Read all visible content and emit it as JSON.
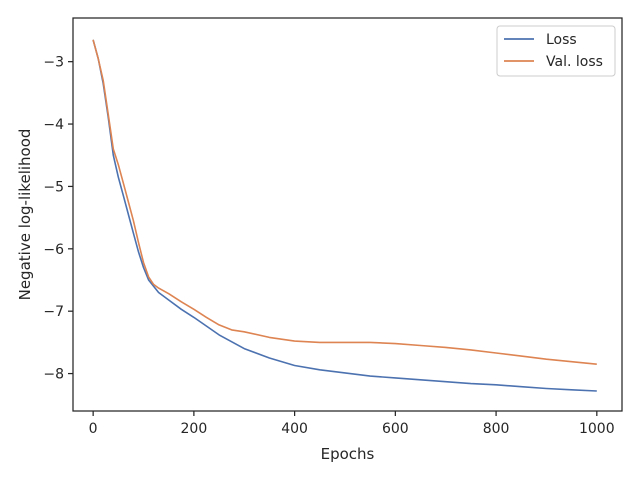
{
  "chart_data": {
    "type": "line",
    "xlabel": "Epochs",
    "ylabel": "Negative log-likelihood",
    "xlim": [
      -40,
      1050
    ],
    "ylim": [
      -8.6,
      -2.3
    ],
    "xticks": [
      0,
      200,
      400,
      600,
      800,
      1000
    ],
    "xtick_labels": [
      "0",
      "200",
      "400",
      "600",
      "800",
      "1000"
    ],
    "yticks": [
      -3,
      -4,
      -5,
      -6,
      -7,
      -8
    ],
    "ytick_labels": [
      "−3",
      "−4",
      "−5",
      "−6",
      "−7",
      "−8"
    ],
    "grid": false,
    "legend_position": "top-right",
    "series": [
      {
        "name": "Loss",
        "color": "#4c72b0",
        "x": [
          0,
          10,
          20,
          30,
          40,
          50,
          60,
          70,
          80,
          90,
          100,
          110,
          120,
          130,
          150,
          175,
          200,
          250,
          300,
          350,
          400,
          450,
          500,
          550,
          600,
          650,
          700,
          750,
          800,
          850,
          900,
          950,
          1000
        ],
        "y": [
          -2.65,
          -2.95,
          -3.35,
          -3.9,
          -4.5,
          -4.85,
          -5.15,
          -5.45,
          -5.75,
          -6.05,
          -6.3,
          -6.5,
          -6.6,
          -6.7,
          -6.82,
          -6.97,
          -7.1,
          -7.38,
          -7.6,
          -7.75,
          -7.87,
          -7.94,
          -7.99,
          -8.04,
          -8.07,
          -8.1,
          -8.13,
          -8.16,
          -8.18,
          -8.21,
          -8.24,
          -8.26,
          -8.28
        ]
      },
      {
        "name": "Val. loss",
        "color": "#dd8452",
        "x": [
          0,
          10,
          20,
          30,
          40,
          50,
          60,
          70,
          80,
          90,
          100,
          110,
          120,
          130,
          150,
          175,
          200,
          225,
          250,
          275,
          300,
          350,
          400,
          450,
          500,
          550,
          600,
          650,
          700,
          750,
          800,
          850,
          900,
          950,
          1000
        ],
        "y": [
          -2.65,
          -2.95,
          -3.3,
          -3.85,
          -4.4,
          -4.65,
          -4.95,
          -5.25,
          -5.55,
          -5.9,
          -6.22,
          -6.45,
          -6.57,
          -6.63,
          -6.72,
          -6.85,
          -6.97,
          -7.1,
          -7.22,
          -7.3,
          -7.33,
          -7.42,
          -7.48,
          -7.5,
          -7.5,
          -7.5,
          -7.52,
          -7.55,
          -7.58,
          -7.62,
          -7.67,
          -7.72,
          -7.77,
          -7.81,
          -7.85
        ]
      }
    ]
  }
}
